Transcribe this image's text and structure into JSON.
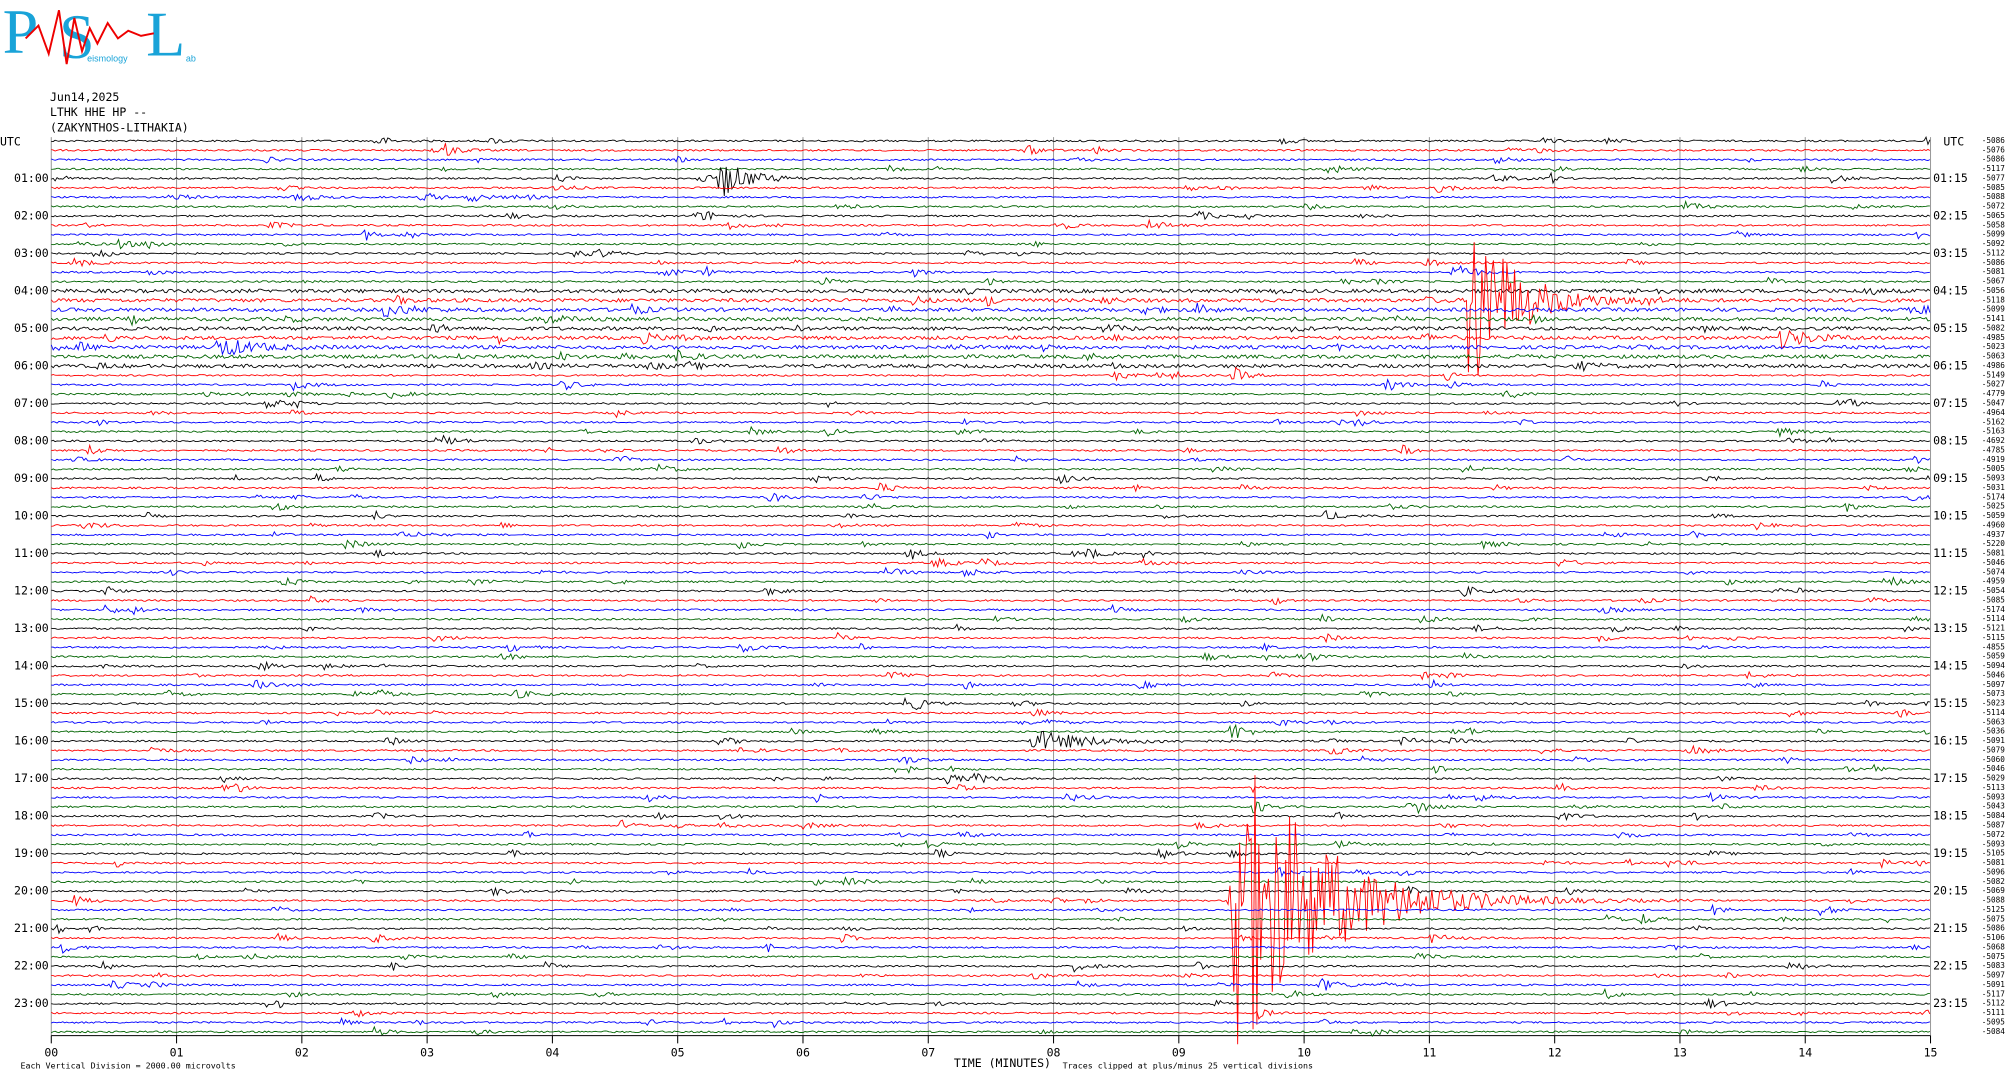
{
  "header": {
    "logo": {
      "letters": [
        "P",
        "S",
        "L"
      ],
      "words": [
        "eismology",
        "ab"
      ]
    },
    "date": "Jun14,2025",
    "station": "LTHK HHE HP --",
    "location": "(ZAKYNTHOS-LITHAKIA)"
  },
  "plot": {
    "left_axis_title": "UTC",
    "right_axis_title": "UTC",
    "left_labels": [
      "01:00",
      "02:00",
      "03:00",
      "04:00",
      "05:00",
      "06:00",
      "07:00",
      "08:00",
      "09:00",
      "10:00",
      "11:00",
      "12:00",
      "13:00",
      "14:00",
      "15:00",
      "16:00",
      "17:00",
      "18:00",
      "19:00",
      "20:00",
      "21:00",
      "22:00",
      "23:00"
    ],
    "right_labels": [
      "01:15",
      "02:15",
      "03:15",
      "04:15",
      "05:15",
      "06:15",
      "07:15",
      "08:15",
      "09:15",
      "10:15",
      "11:15",
      "12:15",
      "13:15",
      "14:15",
      "15:15",
      "16:15",
      "17:15",
      "18:15",
      "19:15",
      "20:15",
      "21:15",
      "22:15",
      "23:15"
    ],
    "trace_offsets": [
      -5086,
      -5076,
      -5086,
      -5117,
      -5077,
      -5085,
      -5088,
      -5072,
      -5065,
      -5058,
      -5099,
      -5092,
      -5112,
      -5086,
      -5081,
      -5067,
      -5056,
      -5118,
      -5099,
      -5141,
      -5082,
      -4985,
      -5023,
      -5063,
      -4986,
      -5149,
      -5027,
      -4779,
      -5047,
      -4964,
      -5162,
      -5163,
      -4692,
      -4785,
      -4919,
      -5005,
      -5093,
      -5031,
      -5174,
      -5025,
      -5059,
      -4960,
      -4937,
      -5220,
      -5081,
      -5046,
      -5074,
      -4959,
      -5054,
      -5085,
      -5174,
      -5114,
      -5121,
      -5115,
      -4855,
      -5059,
      -5094,
      -5046,
      -5097,
      -5073,
      -5023,
      -5114,
      -5063,
      -5036,
      -5091,
      -5079,
      -5060,
      -5046,
      -5029,
      -5113,
      -5093,
      -5043,
      -5084,
      -5087,
      -5072,
      -5093,
      -5105,
      -5081,
      -5096,
      -5082,
      -5069,
      -5088,
      -5125,
      -5075,
      -5086,
      -5106,
      -5068,
      -5075,
      -5083,
      -5097,
      -5091,
      -5117,
      -5112,
      -5111,
      -5095,
      -5084
    ],
    "x_ticks": [
      "00",
      "01",
      "02",
      "03",
      "04",
      "05",
      "06",
      "07",
      "08",
      "09",
      "10",
      "11",
      "12",
      "13",
      "14",
      "15"
    ],
    "x_axis_title": "TIME (MINUTES)",
    "scale_note": "Each Vertical Division = 2000.00 microvolts",
    "clip_note": "Traces clipped at plus/minus 25 vertical divisions"
  }
}
